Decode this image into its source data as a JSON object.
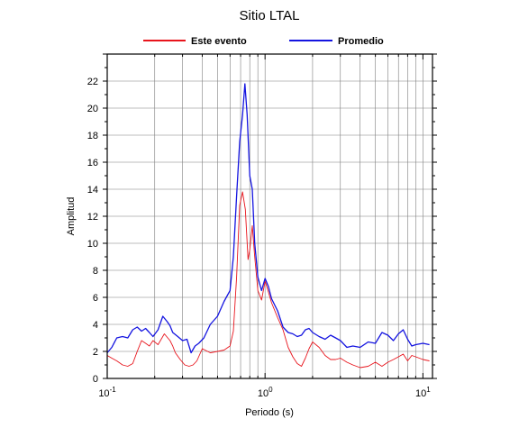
{
  "chart_data": {
    "type": "line",
    "title": "Sitio LTAL",
    "xlabel": "Periodo (s)",
    "ylabel": "Amplitud",
    "x_scale": "log",
    "xlim": [
      0.1,
      11.5
    ],
    "ylim": [
      0,
      24
    ],
    "grid": true,
    "legend_position": "top",
    "x_ticks": [
      {
        "base": "10",
        "exp": "-1",
        "value": 0.1
      },
      {
        "base": "10",
        "exp": "0",
        "value": 1
      },
      {
        "base": "10",
        "exp": "1",
        "value": 10
      }
    ],
    "y_ticks": [
      "0",
      "2",
      "4",
      "6",
      "8",
      "10",
      "12",
      "14",
      "16",
      "18",
      "20",
      "22"
    ],
    "series": [
      {
        "name": "Este evento",
        "color": "#e8141c",
        "points": [
          [
            0.1,
            1.7
          ],
          [
            0.107,
            1.5
          ],
          [
            0.115,
            1.3
          ],
          [
            0.125,
            1.0
          ],
          [
            0.135,
            0.9
          ],
          [
            0.145,
            1.1
          ],
          [
            0.155,
            2.0
          ],
          [
            0.165,
            2.8
          ],
          [
            0.175,
            2.6
          ],
          [
            0.185,
            2.4
          ],
          [
            0.195,
            2.8
          ],
          [
            0.21,
            2.5
          ],
          [
            0.23,
            3.3
          ],
          [
            0.25,
            2.8
          ],
          [
            0.26,
            2.4
          ],
          [
            0.27,
            1.9
          ],
          [
            0.29,
            1.4
          ],
          [
            0.31,
            1.0
          ],
          [
            0.33,
            0.9
          ],
          [
            0.35,
            1.0
          ],
          [
            0.37,
            1.3
          ],
          [
            0.4,
            2.2
          ],
          [
            0.45,
            1.9
          ],
          [
            0.5,
            2.0
          ],
          [
            0.55,
            2.1
          ],
          [
            0.6,
            2.4
          ],
          [
            0.63,
            3.5
          ],
          [
            0.66,
            7.5
          ],
          [
            0.69,
            12.8
          ],
          [
            0.72,
            13.8
          ],
          [
            0.75,
            12.5
          ],
          [
            0.78,
            8.8
          ],
          [
            0.8,
            9.5
          ],
          [
            0.83,
            11.3
          ],
          [
            0.86,
            9.0
          ],
          [
            0.9,
            6.5
          ],
          [
            0.95,
            5.8
          ],
          [
            1.0,
            7.2
          ],
          [
            1.05,
            6.4
          ],
          [
            1.1,
            5.6
          ],
          [
            1.2,
            4.5
          ],
          [
            1.3,
            3.6
          ],
          [
            1.4,
            2.3
          ],
          [
            1.5,
            1.6
          ],
          [
            1.6,
            1.1
          ],
          [
            1.7,
            0.9
          ],
          [
            1.8,
            1.5
          ],
          [
            1.9,
            2.2
          ],
          [
            2.0,
            2.7
          ],
          [
            2.2,
            2.3
          ],
          [
            2.4,
            1.7
          ],
          [
            2.6,
            1.4
          ],
          [
            2.8,
            1.4
          ],
          [
            3.0,
            1.5
          ],
          [
            3.3,
            1.2
          ],
          [
            3.6,
            1.0
          ],
          [
            4.0,
            0.8
          ],
          [
            4.5,
            0.9
          ],
          [
            5.0,
            1.2
          ],
          [
            5.5,
            0.9
          ],
          [
            6.0,
            1.2
          ],
          [
            6.5,
            1.4
          ],
          [
            7.0,
            1.6
          ],
          [
            7.5,
            1.8
          ],
          [
            8.0,
            1.3
          ],
          [
            8.5,
            1.7
          ],
          [
            9.0,
            1.6
          ],
          [
            10.0,
            1.4
          ],
          [
            11.0,
            1.3
          ]
        ]
      },
      {
        "name": "Promedio",
        "color": "#1414e0",
        "points": [
          [
            0.1,
            1.9
          ],
          [
            0.107,
            2.3
          ],
          [
            0.115,
            3.0
          ],
          [
            0.125,
            3.1
          ],
          [
            0.135,
            3.0
          ],
          [
            0.145,
            3.6
          ],
          [
            0.155,
            3.8
          ],
          [
            0.165,
            3.5
          ],
          [
            0.175,
            3.7
          ],
          [
            0.185,
            3.4
          ],
          [
            0.195,
            3.1
          ],
          [
            0.21,
            3.6
          ],
          [
            0.225,
            4.6
          ],
          [
            0.24,
            4.2
          ],
          [
            0.25,
            3.9
          ],
          [
            0.26,
            3.4
          ],
          [
            0.28,
            3.1
          ],
          [
            0.3,
            2.8
          ],
          [
            0.32,
            2.9
          ],
          [
            0.34,
            1.9
          ],
          [
            0.36,
            2.4
          ],
          [
            0.38,
            2.6
          ],
          [
            0.41,
            3.0
          ],
          [
            0.45,
            4.0
          ],
          [
            0.5,
            4.6
          ],
          [
            0.55,
            5.7
          ],
          [
            0.6,
            6.5
          ],
          [
            0.63,
            9.0
          ],
          [
            0.66,
            13.5
          ],
          [
            0.69,
            17.5
          ],
          [
            0.72,
            19.5
          ],
          [
            0.745,
            21.8
          ],
          [
            0.77,
            19.5
          ],
          [
            0.8,
            15.0
          ],
          [
            0.83,
            14.0
          ],
          [
            0.86,
            10.0
          ],
          [
            0.9,
            7.5
          ],
          [
            0.95,
            6.5
          ],
          [
            1.0,
            7.4
          ],
          [
            1.05,
            6.8
          ],
          [
            1.1,
            5.9
          ],
          [
            1.2,
            5.0
          ],
          [
            1.3,
            3.8
          ],
          [
            1.4,
            3.4
          ],
          [
            1.5,
            3.3
          ],
          [
            1.6,
            3.1
          ],
          [
            1.7,
            3.2
          ],
          [
            1.8,
            3.6
          ],
          [
            1.9,
            3.7
          ],
          [
            2.0,
            3.4
          ],
          [
            2.2,
            3.1
          ],
          [
            2.4,
            2.9
          ],
          [
            2.6,
            3.2
          ],
          [
            2.8,
            3.0
          ],
          [
            3.0,
            2.8
          ],
          [
            3.3,
            2.3
          ],
          [
            3.6,
            2.4
          ],
          [
            4.0,
            2.3
          ],
          [
            4.5,
            2.7
          ],
          [
            5.0,
            2.6
          ],
          [
            5.5,
            3.4
          ],
          [
            6.0,
            3.2
          ],
          [
            6.5,
            2.8
          ],
          [
            7.0,
            3.3
          ],
          [
            7.5,
            3.6
          ],
          [
            8.0,
            2.9
          ],
          [
            8.5,
            2.4
          ],
          [
            9.0,
            2.5
          ],
          [
            10.0,
            2.6
          ],
          [
            11.0,
            2.5
          ]
        ]
      }
    ]
  }
}
